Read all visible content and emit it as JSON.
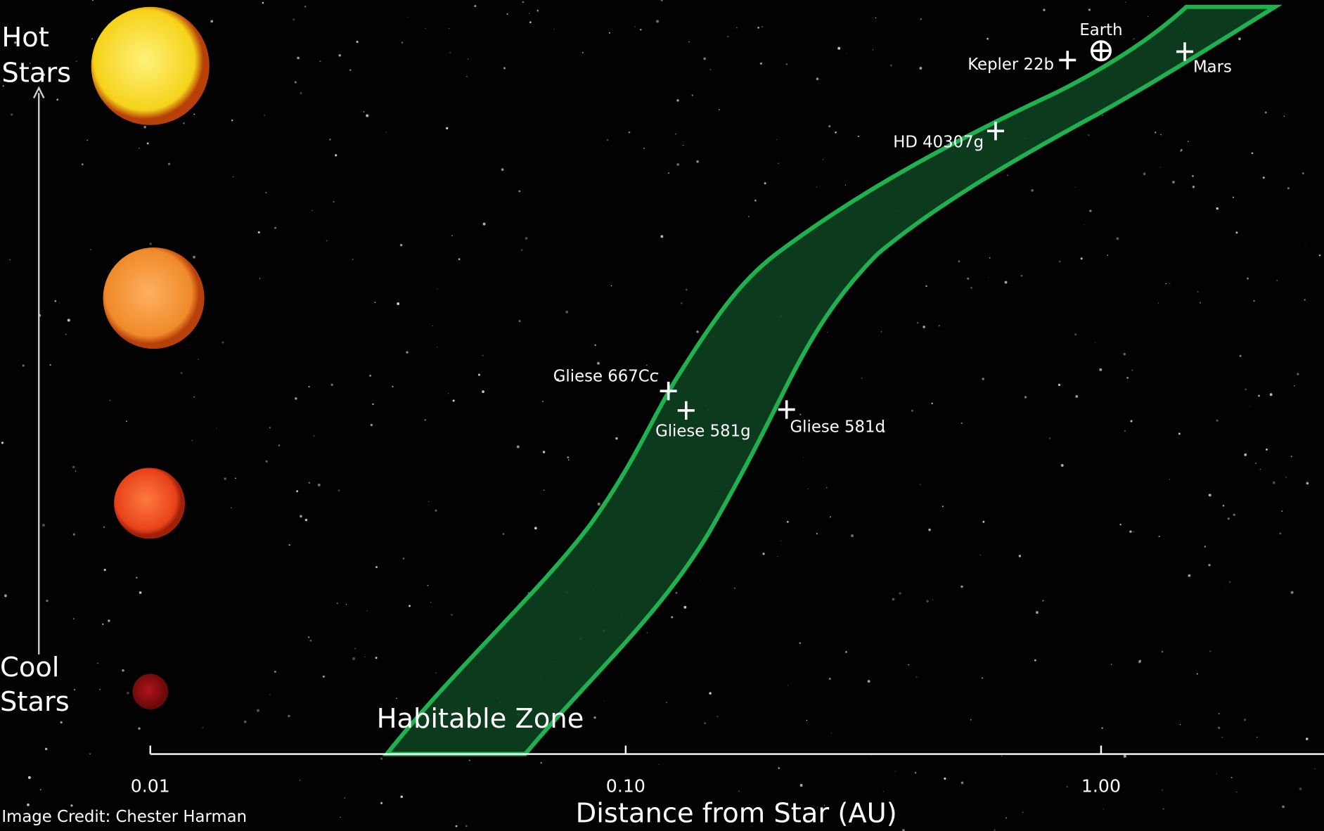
{
  "chart_data": {
    "type": "scatter",
    "xlabel": "Distance from Star (AU)",
    "xlog": true,
    "xlim": [
      0.01,
      3
    ],
    "xticks": [
      0.01,
      {
        "value": 0.1,
        "label": "0.10"
      },
      {
        "value": 1,
        "label": "1.00"
      }
    ],
    "hot_label": [
      "Hot",
      "Stars"
    ],
    "cool_label": [
      "Cool",
      "Stars"
    ],
    "zone_label": "Habitable Zone",
    "credit": "Image Credit: Chester Harman",
    "color": "#ffffff",
    "points": [
      {
        "name": "Earth",
        "x": 1.0
      },
      {
        "name": "Kepler 22b",
        "x": 0.85
      },
      {
        "name": "Mars",
        "x": 1.5
      },
      {
        "name": "HD 40307g",
        "x": 0.6
      },
      {
        "name": "Gliese 667Cc",
        "x": 0.123
      },
      {
        "name": "Gliese 581g",
        "x": 0.134
      },
      {
        "name": "Gliese 581d",
        "x": 0.218
      }
    ]
  }
}
